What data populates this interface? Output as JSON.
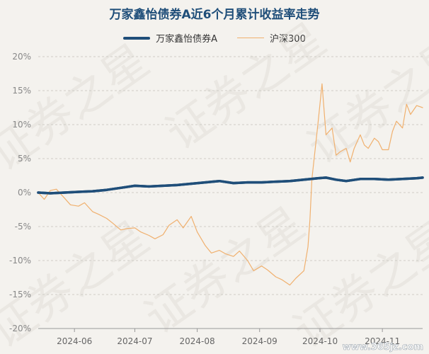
{
  "chart_data": {
    "type": "line",
    "title": "万家鑫怡债券A近6个月累计收益率走势",
    "xlabel": "",
    "ylabel": "",
    "ylim": [
      -20,
      20
    ],
    "yticks": [
      20,
      15,
      10,
      5,
      0,
      -5,
      -10,
      -15,
      -20
    ],
    "ytick_labels": [
      "20%",
      "15%",
      "10%",
      "5%",
      "0%",
      "-5%",
      "-10%",
      "-15%",
      "-20%"
    ],
    "xlim": [
      "2024-05-14",
      "2024-11-21"
    ],
    "xticks": [
      "2024-06-01",
      "2024-07-01",
      "2024-08-01",
      "2024-09-01",
      "2024-10-01",
      "2024-11-01"
    ],
    "xtick_labels": [
      "2024-06",
      "2024-07",
      "2024-08",
      "2024-09",
      "2024-10",
      "2024-11"
    ],
    "grid": true,
    "legend": "top-center",
    "series": [
      {
        "name": "万家鑫怡债券A",
        "color": "#1f4e79",
        "x": [
          "2024-05-14",
          "2024-05-20",
          "2024-05-27",
          "2024-06-03",
          "2024-06-10",
          "2024-06-17",
          "2024-06-24",
          "2024-07-01",
          "2024-07-08",
          "2024-07-15",
          "2024-07-22",
          "2024-07-29",
          "2024-08-05",
          "2024-08-12",
          "2024-08-19",
          "2024-08-26",
          "2024-09-02",
          "2024-09-09",
          "2024-09-16",
          "2024-09-23",
          "2024-09-30",
          "2024-10-04",
          "2024-10-09",
          "2024-10-14",
          "2024-10-21",
          "2024-10-28",
          "2024-11-04",
          "2024-11-11",
          "2024-11-18",
          "2024-11-21"
        ],
        "values": [
          0.0,
          -0.1,
          0.0,
          0.1,
          0.2,
          0.4,
          0.7,
          1.0,
          0.9,
          1.0,
          1.1,
          1.3,
          1.5,
          1.7,
          1.4,
          1.5,
          1.5,
          1.6,
          1.7,
          1.9,
          2.1,
          2.2,
          1.9,
          1.7,
          2.0,
          2.0,
          1.9,
          2.0,
          2.1,
          2.2
        ]
      },
      {
        "name": "沪深300",
        "color": "#f0b06e",
        "x": [
          "2024-05-14",
          "2024-05-17",
          "2024-05-20",
          "2024-05-23",
          "2024-05-27",
          "2024-05-30",
          "2024-06-03",
          "2024-06-06",
          "2024-06-10",
          "2024-06-13",
          "2024-06-17",
          "2024-06-20",
          "2024-06-24",
          "2024-06-27",
          "2024-07-01",
          "2024-07-04",
          "2024-07-08",
          "2024-07-11",
          "2024-07-15",
          "2024-07-18",
          "2024-07-22",
          "2024-07-25",
          "2024-07-29",
          "2024-08-01",
          "2024-08-05",
          "2024-08-08",
          "2024-08-12",
          "2024-08-15",
          "2024-08-19",
          "2024-08-22",
          "2024-08-26",
          "2024-08-29",
          "2024-09-02",
          "2024-09-05",
          "2024-09-09",
          "2024-09-12",
          "2024-09-16",
          "2024-09-19",
          "2024-09-23",
          "2024-09-25",
          "2024-09-26",
          "2024-09-27",
          "2024-09-30",
          "2024-10-02",
          "2024-10-04",
          "2024-10-07",
          "2024-10-09",
          "2024-10-11",
          "2024-10-14",
          "2024-10-16",
          "2024-10-18",
          "2024-10-21",
          "2024-10-23",
          "2024-10-25",
          "2024-10-28",
          "2024-10-30",
          "2024-11-01",
          "2024-11-04",
          "2024-11-06",
          "2024-11-08",
          "2024-11-11",
          "2024-11-13",
          "2024-11-15",
          "2024-11-18",
          "2024-11-21"
        ],
        "values": [
          0.0,
          -1.0,
          0.3,
          0.5,
          -0.8,
          -1.8,
          -2.0,
          -1.5,
          -2.8,
          -3.2,
          -3.8,
          -4.5,
          -5.5,
          -5.3,
          -5.2,
          -5.8,
          -6.3,
          -6.8,
          -6.2,
          -4.8,
          -4.0,
          -5.2,
          -3.5,
          -5.8,
          -7.8,
          -8.9,
          -8.5,
          -9.0,
          -9.4,
          -8.6,
          -10.0,
          -11.5,
          -10.8,
          -11.4,
          -12.4,
          -12.8,
          -13.6,
          -12.6,
          -11.5,
          -8.0,
          -4.0,
          2.0,
          10.2,
          16.0,
          8.5,
          9.5,
          5.5,
          6.0,
          6.5,
          4.5,
          6.5,
          8.5,
          7.0,
          6.5,
          8.0,
          7.5,
          6.3,
          6.3,
          9.0,
          10.5,
          9.5,
          13.0,
          11.5,
          12.8,
          12.5
        ]
      }
    ]
  },
  "watermark": {
    "main_text": "证券之星",
    "url_text": "www.365jz.com"
  }
}
